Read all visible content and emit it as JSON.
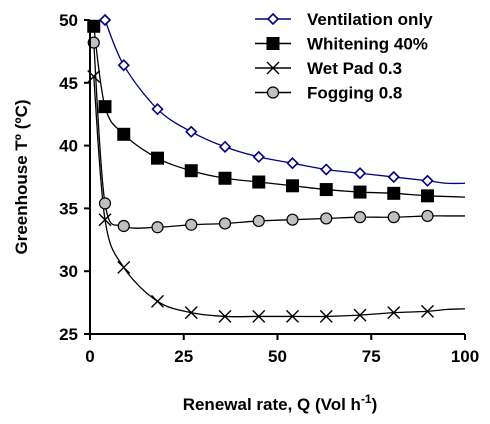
{
  "chart_data": {
    "type": "line",
    "title": "",
    "xlabel": "Renewal rate, Q (Vol h",
    "xlabel_superscript": "-1",
    "xlabel_suffix": ")",
    "ylabel": "Greenhouse Tº (ºC)",
    "xlim": [
      0,
      100
    ],
    "ylim": [
      25,
      50
    ],
    "xticks": [
      0,
      25,
      50,
      75,
      100
    ],
    "yticks": [
      25,
      30,
      35,
      40,
      45,
      50
    ],
    "grid": false,
    "legend_position": "top-right",
    "series": [
      {
        "name": "Ventilation only",
        "marker": "diamond-open",
        "color": "#000080",
        "marker_fill": "#ffffff",
        "x": [
          4,
          9,
          18,
          27,
          36,
          45,
          54,
          63,
          72,
          81,
          90
        ],
        "y": [
          50.0,
          46.4,
          42.9,
          41.1,
          39.9,
          39.1,
          38.6,
          38.1,
          37.8,
          37.5,
          37.2
        ],
        "curve_x": [
          4,
          9,
          18,
          27,
          36,
          45,
          54,
          63,
          72,
          81,
          90,
          95,
          100
        ],
        "curve_y": [
          50.0,
          46.4,
          42.9,
          41.1,
          39.9,
          39.1,
          38.6,
          38.1,
          37.8,
          37.5,
          37.2,
          37.0,
          37.0
        ]
      },
      {
        "name": "Whitening 40%",
        "marker": "square-filled",
        "color": "#000000",
        "marker_fill": "#000000",
        "x": [
          1,
          4,
          9,
          18,
          27,
          36,
          45,
          54,
          63,
          72,
          81,
          90
        ],
        "y": [
          49.5,
          43.1,
          40.9,
          39.0,
          38.0,
          37.4,
          37.1,
          36.8,
          36.5,
          36.3,
          36.2,
          36.0
        ],
        "curve_x": [
          1,
          4,
          9,
          18,
          27,
          36,
          45,
          54,
          63,
          72,
          81,
          90,
          95,
          100
        ],
        "curve_y": [
          49.5,
          43.1,
          40.9,
          39.0,
          38.0,
          37.4,
          37.1,
          36.8,
          36.5,
          36.3,
          36.2,
          36.0,
          35.95,
          35.9
        ]
      },
      {
        "name": "Wet Pad 0.3",
        "marker": "x",
        "color": "#000000",
        "marker_fill": "none",
        "x": [
          1,
          4,
          9,
          18,
          27,
          36,
          45,
          54,
          63,
          72,
          81,
          90
        ],
        "y": [
          45.5,
          34.1,
          30.3,
          27.6,
          26.7,
          26.4,
          26.4,
          26.4,
          26.4,
          26.5,
          26.7,
          26.8
        ],
        "curve_x": [
          1,
          4,
          9,
          18,
          27,
          36,
          45,
          54,
          63,
          72,
          81,
          90,
          95,
          100
        ],
        "curve_y": [
          45.5,
          34.1,
          30.3,
          27.6,
          26.7,
          26.4,
          26.4,
          26.4,
          26.4,
          26.5,
          26.7,
          26.8,
          26.95,
          27.0
        ]
      },
      {
        "name": "Fogging 0.8",
        "marker": "circle",
        "color": "#000000",
        "marker_fill": "#c0c0c0",
        "x": [
          1,
          4,
          9,
          18,
          27,
          36,
          45,
          54,
          63,
          72,
          81,
          90
        ],
        "y": [
          48.2,
          35.4,
          33.6,
          33.5,
          33.7,
          33.8,
          34.0,
          34.1,
          34.2,
          34.3,
          34.3,
          34.4
        ],
        "curve_x": [
          1,
          4,
          9,
          18,
          27,
          36,
          45,
          54,
          63,
          72,
          81,
          90,
          95,
          100
        ],
        "curve_y": [
          48.2,
          35.4,
          33.6,
          33.5,
          33.7,
          33.8,
          34.0,
          34.1,
          34.2,
          34.3,
          34.3,
          34.4,
          34.4,
          34.4
        ]
      }
    ]
  }
}
